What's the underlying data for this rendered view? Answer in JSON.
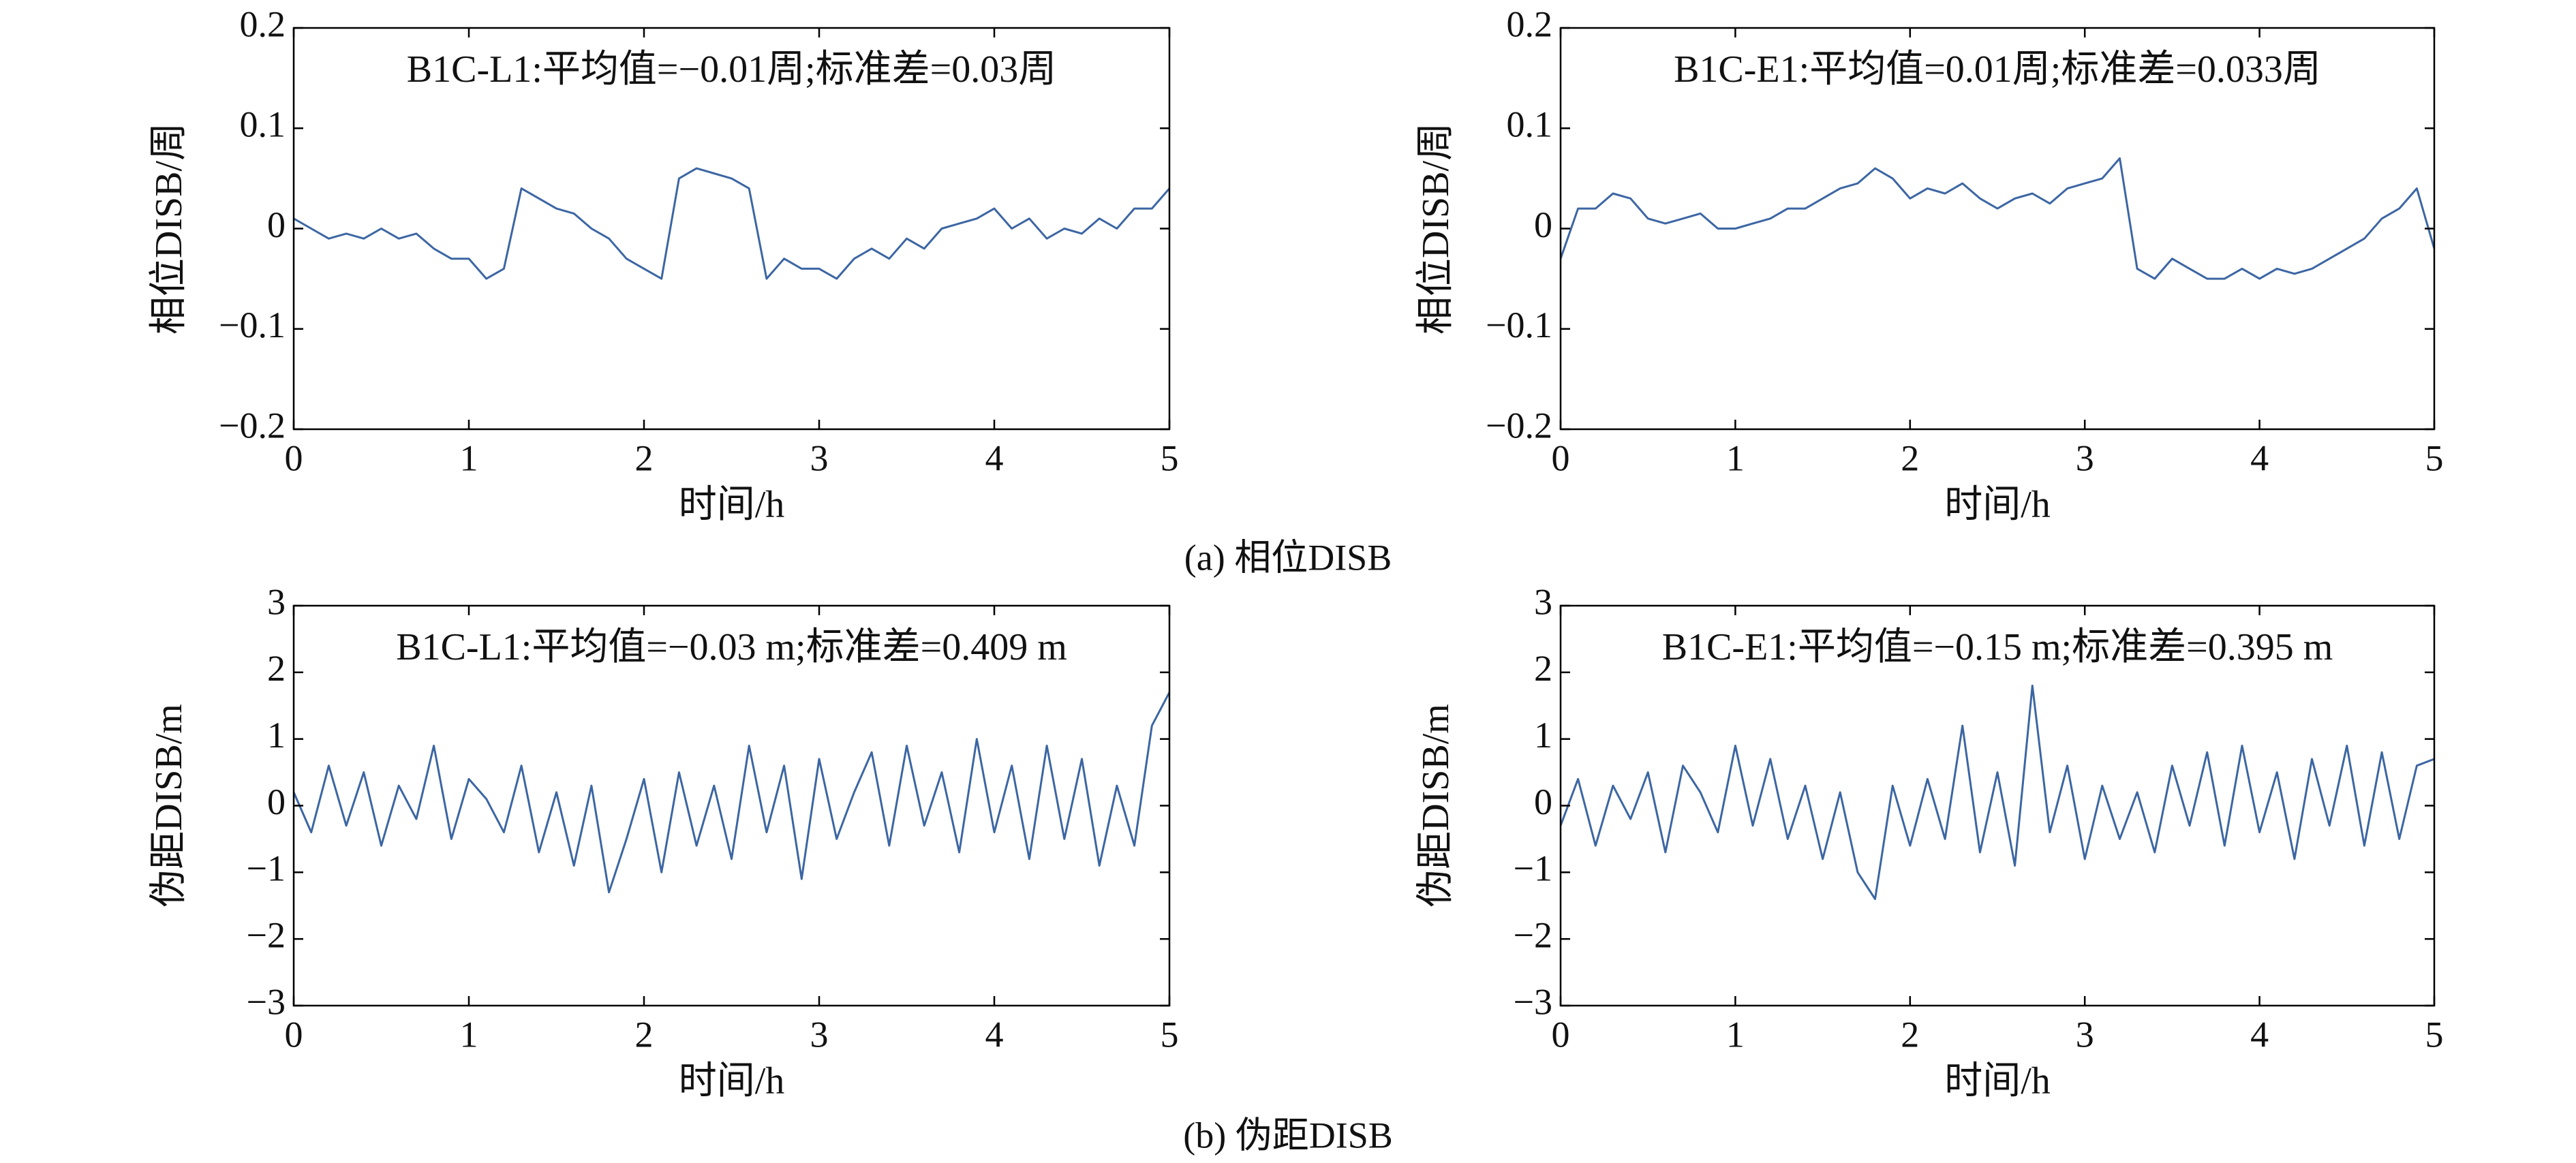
{
  "chart_data": [
    {
      "type": "line",
      "annotation": "B1C-L1:平均值=−0.01周;标准差=0.03周",
      "xlabel": "时间/h",
      "ylabel": "相位DISB/周",
      "color": "#3c66a3",
      "xlim": [
        0,
        5
      ],
      "xticks": [
        0,
        1,
        2,
        3,
        4,
        5
      ],
      "ylim": [
        -0.2,
        0.2
      ],
      "yticks": [
        {
          "value": -0.2,
          "label": "−0.2"
        },
        {
          "value": -0.1,
          "label": "−0.1"
        },
        0,
        0.1,
        0.2
      ],
      "x": [
        0,
        0.1,
        0.2,
        0.3,
        0.4,
        0.5,
        0.6,
        0.7,
        0.8,
        0.9,
        1,
        1.1,
        1.2,
        1.3,
        1.4,
        1.5,
        1.6,
        1.7,
        1.8,
        1.9,
        2,
        2.1,
        2.2,
        2.3,
        2.4,
        2.5,
        2.6,
        2.7,
        2.8,
        2.9,
        3,
        3.1,
        3.2,
        3.3,
        3.4,
        3.5,
        3.6,
        3.7,
        3.8,
        3.9,
        4,
        4.1,
        4.2,
        4.3,
        4.4,
        4.5,
        4.6,
        4.7,
        4.8,
        4.9,
        5
      ],
      "values": [
        0.01,
        0,
        -0.01,
        -0.005,
        -0.01,
        0,
        -0.01,
        -0.005,
        -0.02,
        -0.03,
        -0.03,
        -0.05,
        -0.04,
        0.04,
        0.03,
        0.02,
        0.015,
        0,
        -0.01,
        -0.03,
        -0.04,
        -0.05,
        0.05,
        0.06,
        0.055,
        0.05,
        0.04,
        -0.05,
        -0.03,
        -0.04,
        -0.04,
        -0.05,
        -0.03,
        -0.02,
        -0.03,
        -0.01,
        -0.02,
        0,
        0.005,
        0.01,
        0.02,
        0,
        0.01,
        -0.01,
        0,
        -0.005,
        0.01,
        0,
        0.02,
        0.02,
        0.04
      ]
    },
    {
      "type": "line",
      "annotation": "B1C-E1:平均值=0.01周;标准差=0.033周",
      "xlabel": "时间/h",
      "ylabel": "相位DISB/周",
      "color": "#3c66a3",
      "xlim": [
        0,
        5
      ],
      "xticks": [
        0,
        1,
        2,
        3,
        4,
        5
      ],
      "ylim": [
        -0.2,
        0.2
      ],
      "yticks": [
        {
          "value": -0.2,
          "label": "−0.2"
        },
        {
          "value": -0.1,
          "label": "−0.1"
        },
        0,
        0.1,
        0.2
      ],
      "x": [
        0,
        0.1,
        0.2,
        0.3,
        0.4,
        0.5,
        0.6,
        0.7,
        0.8,
        0.9,
        1,
        1.1,
        1.2,
        1.3,
        1.4,
        1.5,
        1.6,
        1.7,
        1.8,
        1.9,
        2,
        2.1,
        2.2,
        2.3,
        2.4,
        2.5,
        2.6,
        2.7,
        2.8,
        2.9,
        3,
        3.1,
        3.2,
        3.3,
        3.4,
        3.5,
        3.6,
        3.7,
        3.8,
        3.9,
        4,
        4.1,
        4.2,
        4.3,
        4.4,
        4.5,
        4.6,
        4.7,
        4.8,
        4.9,
        5
      ],
      "values": [
        -0.03,
        0.02,
        0.02,
        0.035,
        0.03,
        0.01,
        0.005,
        0.01,
        0.015,
        0,
        0,
        0.005,
        0.01,
        0.02,
        0.02,
        0.03,
        0.04,
        0.045,
        0.06,
        0.05,
        0.03,
        0.04,
        0.035,
        0.045,
        0.03,
        0.02,
        0.03,
        0.035,
        0.025,
        0.04,
        0.045,
        0.05,
        0.07,
        -0.04,
        -0.05,
        -0.03,
        -0.04,
        -0.05,
        -0.05,
        -0.04,
        -0.05,
        -0.04,
        -0.045,
        -0.04,
        -0.03,
        -0.02,
        -0.01,
        0.01,
        0.02,
        0.04,
        -0.02
      ]
    },
    {
      "type": "line",
      "annotation": "B1C-L1:平均值=−0.03 m;标准差=0.409 m",
      "xlabel": "时间/h",
      "ylabel": "伪距DISB/m",
      "color": "#3c66a3",
      "xlim": [
        0,
        5
      ],
      "xticks": [
        0,
        1,
        2,
        3,
        4,
        5
      ],
      "ylim": [
        -3,
        3
      ],
      "yticks": [
        {
          "value": -3,
          "label": "−3"
        },
        {
          "value": -2,
          "label": "−2"
        },
        {
          "value": -1,
          "label": "−1"
        },
        0,
        1,
        2,
        3
      ],
      "x": [
        0,
        0.1,
        0.2,
        0.3,
        0.4,
        0.5,
        0.6,
        0.7,
        0.8,
        0.9,
        1,
        1.1,
        1.2,
        1.3,
        1.4,
        1.5,
        1.6,
        1.7,
        1.8,
        1.9,
        2,
        2.1,
        2.2,
        2.3,
        2.4,
        2.5,
        2.6,
        2.7,
        2.8,
        2.9,
        3,
        3.1,
        3.2,
        3.3,
        3.4,
        3.5,
        3.6,
        3.7,
        3.8,
        3.9,
        4,
        4.1,
        4.2,
        4.3,
        4.4,
        4.5,
        4.6,
        4.7,
        4.8,
        4.9,
        5
      ],
      "values": [
        0.2,
        -0.4,
        0.6,
        -0.3,
        0.5,
        -0.6,
        0.3,
        -0.2,
        0.9,
        -0.5,
        0.4,
        0.1,
        -0.4,
        0.6,
        -0.7,
        0.2,
        -0.9,
        0.3,
        -1.3,
        -0.5,
        0.4,
        -1.0,
        0.5,
        -0.6,
        0.3,
        -0.8,
        0.9,
        -0.4,
        0.6,
        -1.1,
        0.7,
        -0.5,
        0.2,
        0.8,
        -0.6,
        0.9,
        -0.3,
        0.5,
        -0.7,
        1.0,
        -0.4,
        0.6,
        -0.8,
        0.9,
        -0.5,
        0.7,
        -0.9,
        0.3,
        -0.6,
        1.2,
        1.7
      ]
    },
    {
      "type": "line",
      "annotation": "B1C-E1:平均值=−0.15 m;标准差=0.395 m",
      "xlabel": "时间/h",
      "ylabel": "伪距DISB/m",
      "color": "#3c66a3",
      "xlim": [
        0,
        5
      ],
      "xticks": [
        0,
        1,
        2,
        3,
        4,
        5
      ],
      "ylim": [
        -3,
        3
      ],
      "yticks": [
        {
          "value": -3,
          "label": "−3"
        },
        {
          "value": -2,
          "label": "−2"
        },
        {
          "value": -1,
          "label": "−1"
        },
        0,
        1,
        2,
        3
      ],
      "x": [
        0,
        0.1,
        0.2,
        0.3,
        0.4,
        0.5,
        0.6,
        0.7,
        0.8,
        0.9,
        1,
        1.1,
        1.2,
        1.3,
        1.4,
        1.5,
        1.6,
        1.7,
        1.8,
        1.9,
        2,
        2.1,
        2.2,
        2.3,
        2.4,
        2.5,
        2.6,
        2.7,
        2.8,
        2.9,
        3,
        3.1,
        3.2,
        3.3,
        3.4,
        3.5,
        3.6,
        3.7,
        3.8,
        3.9,
        4,
        4.1,
        4.2,
        4.3,
        4.4,
        4.5,
        4.6,
        4.7,
        4.8,
        4.9,
        5
      ],
      "values": [
        -0.3,
        0.4,
        -0.6,
        0.3,
        -0.2,
        0.5,
        -0.7,
        0.6,
        0.2,
        -0.4,
        0.9,
        -0.3,
        0.7,
        -0.5,
        0.3,
        -0.8,
        0.2,
        -1.0,
        -1.4,
        0.3,
        -0.6,
        0.4,
        -0.5,
        1.2,
        -0.7,
        0.5,
        -0.9,
        1.8,
        -0.4,
        0.6,
        -0.8,
        0.3,
        -0.5,
        0.2,
        -0.7,
        0.6,
        -0.3,
        0.8,
        -0.6,
        0.9,
        -0.4,
        0.5,
        -0.8,
        0.7,
        -0.3,
        0.9,
        -0.6,
        0.8,
        -0.5,
        0.6,
        0.7
      ]
    }
  ],
  "captions": [
    "(a) 相位DISB",
    "(b) 伪距DISB"
  ]
}
